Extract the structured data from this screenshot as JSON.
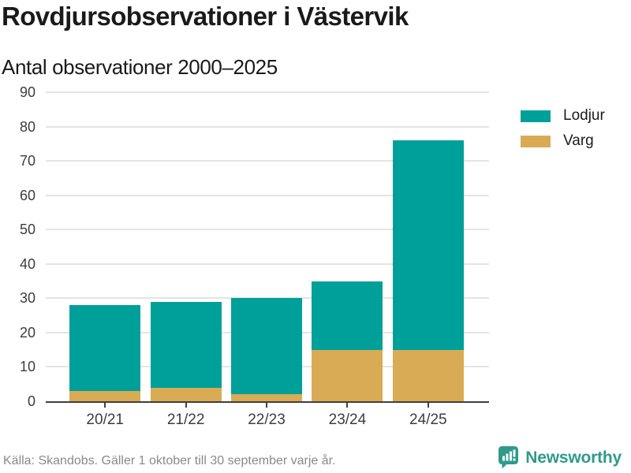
{
  "header": {
    "title": "Rovdjursobservationer i Västervik",
    "subtitle": "Antal observationer 2000–2025"
  },
  "chart_data": {
    "type": "bar",
    "stacked": true,
    "title": "Rovdjursobservationer i Västervik",
    "subtitle": "Antal observationer 2000–2025",
    "categories": [
      "20/21",
      "21/22",
      "22/23",
      "23/24",
      "24/25"
    ],
    "series": [
      {
        "name": "Lodjur",
        "color": "#00a09a",
        "values": [
          25,
          25,
          28,
          20,
          61
        ]
      },
      {
        "name": "Varg",
        "color": "#d9ab55",
        "values": [
          3,
          4,
          2,
          15,
          15
        ]
      }
    ],
    "stack_totals": [
      28,
      29,
      30,
      35,
      76
    ],
    "xlabel": "",
    "ylabel": "",
    "ylim": [
      0,
      90
    ],
    "yticks": [
      0,
      10,
      20,
      30,
      40,
      50,
      60,
      70,
      80,
      90
    ],
    "grid": "horizontal-light",
    "legend_position": "top-right"
  },
  "footer": {
    "source": "Källa: Skandobs. Gäller 1 oktober till 30 september varje år.",
    "brand": "Newsworthy"
  },
  "colors": {
    "lodjur": "#00a09a",
    "varg": "#d9ab55",
    "brand_teal": "#2f9a8c",
    "grid": "#e4e4e4",
    "axis": "#3f3f3f",
    "text": "#1a1a1a",
    "muted": "#8a8a8a"
  }
}
